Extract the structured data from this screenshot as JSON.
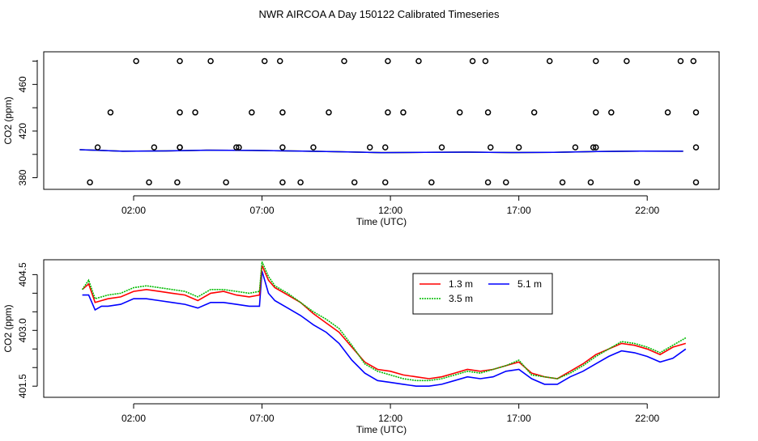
{
  "title": "NWR AIRCOA A  Day 150122  Calibrated Timeseries",
  "chart_data": [
    {
      "type": "scatter",
      "xlabel": "Time (UTC)",
      "ylabel": "CO2 (ppm)",
      "xlim": [
        -1.5,
        24.8
      ],
      "ylim": [
        370,
        488
      ],
      "x_ticks": [
        2,
        7,
        12,
        17,
        22
      ],
      "x_tick_labels": [
        "02:00",
        "07:00",
        "12:00",
        "17:00",
        "22:00"
      ],
      "y_ticks": [
        380,
        420,
        460
      ],
      "y_tick_labels": [
        "380",
        "420",
        "460"
      ],
      "grid": false,
      "outliers": {
        "y480": [
          2.1,
          3.8,
          5.0,
          7.1,
          7.7,
          10.2,
          11.9,
          13.1,
          15.2,
          15.7,
          18.2,
          20.0,
          21.2,
          23.3,
          23.8
        ],
        "y436": [
          1.1,
          3.8,
          4.4,
          6.6,
          7.8,
          9.6,
          11.9,
          12.5,
          14.7,
          15.8,
          17.6,
          20.0,
          20.6,
          22.8,
          23.9
        ],
        "y406": [
          0.6,
          2.8,
          3.8,
          3.8,
          6.0,
          6.1,
          7.8,
          9.0,
          11.2,
          11.8,
          14.0,
          15.9,
          17.0,
          19.2,
          19.9,
          20.0,
          23.9
        ],
        "y376": [
          0.3,
          2.6,
          3.7,
          5.6,
          7.8,
          8.5,
          10.6,
          11.8,
          13.6,
          15.8,
          16.5,
          18.7,
          19.8,
          21.6,
          23.9
        ]
      },
      "series": [
        {
          "name": "1.3 m",
          "color": "#ff0000",
          "values": [
            404.0,
            402.7,
            403.0,
            403.6,
            403.4,
            402.9,
            402.3,
            401.5,
            401.7,
            401.9,
            401.6,
            401.7,
            402.4,
            402.8,
            402.7
          ]
        },
        {
          "name": "3.5 m",
          "color": "#00bb00",
          "values": [
            404.0,
            402.7,
            403.0,
            403.6,
            403.4,
            402.9,
            402.3,
            401.5,
            401.7,
            401.9,
            401.6,
            401.7,
            402.4,
            402.8,
            402.7
          ]
        },
        {
          "name": "5.1 m",
          "color": "#0000ff",
          "values": [
            404.0,
            402.7,
            403.0,
            403.6,
            403.4,
            402.9,
            402.3,
            401.5,
            401.7,
            401.9,
            401.6,
            401.7,
            402.4,
            402.8,
            402.7
          ]
        }
      ]
    },
    {
      "type": "line",
      "xlabel": "Time (UTC)",
      "ylabel": "CO2 (ppm)",
      "xlim": [
        -1.5,
        24.8
      ],
      "ylim": [
        401.2,
        404.9
      ],
      "x_ticks": [
        2,
        7,
        12,
        17,
        22
      ],
      "x_tick_labels": [
        "02:00",
        "07:00",
        "12:00",
        "17:00",
        "22:00"
      ],
      "y_ticks": [
        401.5,
        403.0,
        404.5
      ],
      "y_tick_labels": [
        "401.5",
        "403.0",
        "404.5"
      ],
      "grid": false,
      "legend": {
        "position": "top-center",
        "entries": [
          "1.3 m",
          "5.1 m",
          "3.5 m"
        ]
      },
      "x": [
        0.0,
        0.25,
        0.5,
        0.75,
        1.0,
        1.5,
        2.0,
        2.5,
        3.0,
        3.5,
        4.0,
        4.5,
        5.0,
        5.5,
        6.0,
        6.5,
        6.9,
        7.0,
        7.25,
        7.5,
        8.0,
        8.5,
        9.0,
        9.5,
        10.0,
        10.5,
        11.0,
        11.5,
        12.0,
        12.5,
        13.0,
        13.5,
        14.0,
        14.5,
        15.0,
        15.5,
        16.0,
        16.5,
        17.0,
        17.5,
        18.0,
        18.5,
        19.0,
        19.5,
        20.0,
        20.5,
        21.0,
        21.5,
        22.0,
        22.5,
        23.0,
        23.5
      ],
      "series": [
        {
          "name": "1.3 m",
          "color": "#ff0000",
          "values": [
            404.1,
            404.25,
            403.75,
            403.8,
            403.85,
            403.9,
            404.05,
            404.1,
            404.05,
            404.0,
            403.95,
            403.8,
            404.0,
            404.05,
            403.95,
            403.9,
            403.95,
            404.75,
            404.35,
            404.15,
            403.95,
            403.75,
            403.45,
            403.2,
            402.95,
            402.55,
            402.15,
            401.95,
            401.9,
            401.8,
            401.75,
            401.7,
            401.75,
            401.85,
            401.95,
            401.9,
            401.95,
            402.05,
            402.15,
            401.85,
            401.75,
            401.7,
            401.9,
            402.1,
            402.35,
            402.5,
            402.65,
            402.6,
            402.5,
            402.35,
            402.55,
            402.65
          ]
        },
        {
          "name": "3.5 m",
          "color": "#00bb00",
          "values": [
            404.1,
            404.35,
            403.85,
            403.9,
            403.95,
            404.0,
            404.15,
            404.2,
            404.15,
            404.1,
            404.05,
            403.9,
            404.1,
            404.1,
            404.05,
            404.0,
            404.05,
            404.85,
            404.45,
            404.2,
            404.0,
            403.75,
            403.5,
            403.3,
            403.05,
            402.6,
            402.1,
            401.9,
            401.8,
            401.7,
            401.65,
            401.65,
            401.7,
            401.8,
            401.9,
            401.85,
            401.95,
            402.05,
            402.2,
            401.8,
            401.75,
            401.7,
            401.85,
            402.05,
            402.3,
            402.5,
            402.7,
            402.65,
            402.55,
            402.4,
            402.6,
            402.8
          ]
        },
        {
          "name": "5.1 m",
          "color": "#0000ff",
          "values": [
            403.95,
            403.95,
            403.55,
            403.65,
            403.65,
            403.7,
            403.85,
            403.85,
            403.8,
            403.75,
            403.7,
            403.6,
            403.75,
            403.75,
            403.7,
            403.65,
            403.65,
            404.6,
            404.0,
            403.8,
            403.6,
            403.4,
            403.15,
            402.95,
            402.65,
            402.2,
            401.85,
            401.65,
            401.6,
            401.55,
            401.5,
            401.5,
            401.55,
            401.65,
            401.75,
            401.7,
            401.75,
            401.9,
            401.95,
            401.7,
            401.55,
            401.55,
            401.75,
            401.9,
            402.1,
            402.3,
            402.45,
            402.4,
            402.3,
            402.15,
            402.25,
            402.5
          ]
        }
      ]
    }
  ]
}
